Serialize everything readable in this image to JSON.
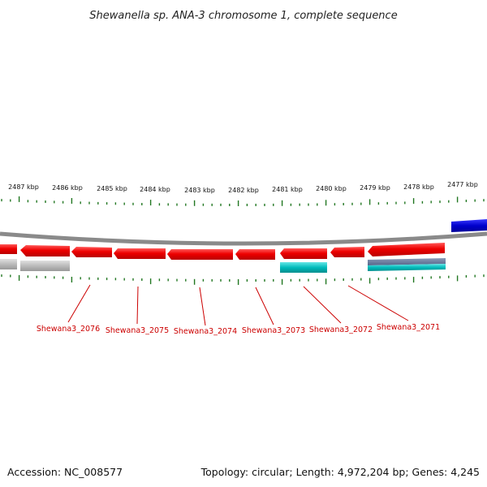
{
  "header": {
    "title": "Shewanella sp. ANA-3 chromosome 1, complete sequence"
  },
  "footer": {
    "accession": "Accession: NC_008577",
    "summary": "Topology: circular; Length: 4,972,204 bp; Genes: 4,245"
  },
  "ruler": {
    "labels": [
      "2487 kbp",
      "2486 kbp",
      "2485 kbp",
      "2484 kbp",
      "2483 kbp",
      "2482 kbp",
      "2481 kbp",
      "2480 kbp",
      "2479 kbp",
      "2478 kbp",
      "2477 kbp"
    ]
  },
  "genes": [
    {
      "name": "Shewana3_2071"
    },
    {
      "name": "Shewana3_2072"
    },
    {
      "name": "Shewana3_2073"
    },
    {
      "name": "Shewana3_2074"
    },
    {
      "name": "Shewana3_2075"
    },
    {
      "name": "Shewana3_2076"
    }
  ],
  "colors": {
    "cds": "#ee0000",
    "gene_grey": "#bbbbbb",
    "cyan": "#00bbbb",
    "blue": "#0000cc",
    "backbone": "#8a8a8a",
    "tick": "#227722",
    "label": "#cc0000"
  }
}
